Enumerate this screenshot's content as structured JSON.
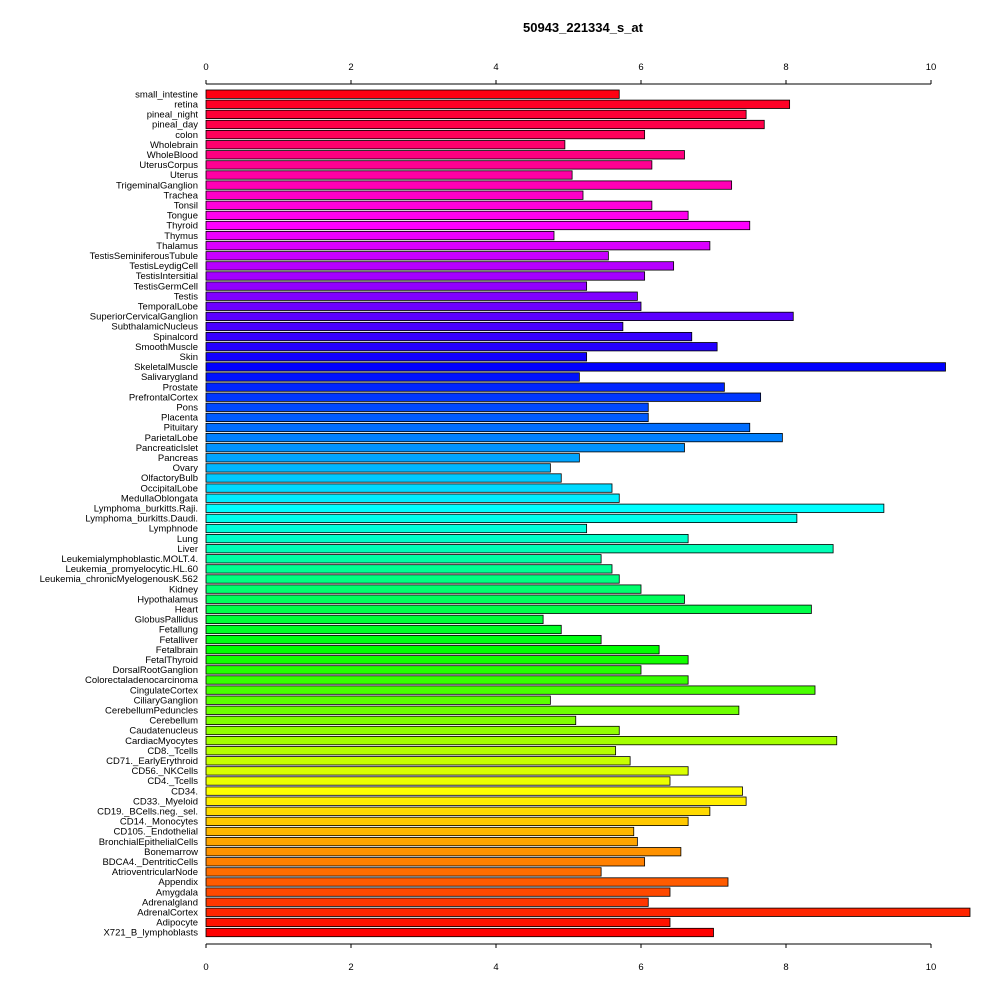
{
  "chart_data": {
    "type": "bar",
    "orientation": "horizontal",
    "title": "50943_221334_s_at",
    "xlabel": "",
    "ylabel": "",
    "xlim": [
      0,
      10.55
    ],
    "xticks": [
      0,
      2,
      4,
      6,
      8,
      10
    ],
    "grid": false,
    "legend": "none",
    "colors": "rainbow gradient from red (bottom) through yellow, green, cyan, blue, magenta back to red (top)",
    "categories": [
      "small_intestine",
      "retina",
      "pineal_night",
      "pineal_day",
      "colon",
      "Wholebrain",
      "WholeBlood",
      "UterusCorpus",
      "Uterus",
      "TrigeminalGanglion",
      "Trachea",
      "Tonsil",
      "Tongue",
      "Thyroid",
      "Thymus",
      "Thalamus",
      "TestisSeminiferousTubule",
      "TestisLeydigCell",
      "TestisIntersitial",
      "TestisGermCell",
      "Testis",
      "TemporalLobe",
      "SuperiorCervicalGanglion",
      "SubthalamicNucleus",
      "Spinalcord",
      "SmoothMuscle",
      "Skin",
      "SkeletalMuscle",
      "Salivarygland",
      "Prostate",
      "PrefrontalCortex",
      "Pons",
      "Placenta",
      "Pituitary",
      "ParietalLobe",
      "PancreaticIslet",
      "Pancreas",
      "Ovary",
      "OlfactoryBulb",
      "OccipitalLobe",
      "MedullaOblongata",
      "Lymphoma_burkitts.Raji.",
      "Lymphoma_burkitts.Daudi.",
      "Lymphnode",
      "Lung",
      "Liver",
      "Leukemialymphoblastic.MOLT.4.",
      "Leukemia_promyelocytic.HL.60",
      "Leukemia_chronicMyelogenousK.562",
      "Kidney",
      "Hypothalamus",
      "Heart",
      "GlobusPallidus",
      "Fetallung",
      "Fetalliver",
      "Fetalbrain",
      "FetalThyroid",
      "DorsalRootGanglion",
      "Colorectaladenocarcinoma",
      "CingulateCortex",
      "CiliaryGanglion",
      "CerebellumPeduncles",
      "Cerebellum",
      "Caudatenucleus",
      "CardiacMyocytes",
      "CD8._Tcells",
      "CD71._EarlyErythroid",
      "CD56._NKCells",
      "CD4._Tcells",
      "CD34.",
      "CD33._Myeloid",
      "CD19._BCells.neg._sel.",
      "CD14._Monocytes",
      "CD105._Endothelial",
      "BronchialEpithelialCells",
      "Bonemarrow",
      "BDCA4._DentriticCells",
      "AtrioventricularNode",
      "Appendix",
      "Amygdala",
      "Adrenalgland",
      "AdrenalCortex",
      "Adipocyte",
      "X721_B_lymphoblasts"
    ],
    "values": [
      5.7,
      8.05,
      7.45,
      7.7,
      6.05,
      4.95,
      6.6,
      6.15,
      5.05,
      7.25,
      5.2,
      6.15,
      6.65,
      7.5,
      4.8,
      6.95,
      5.55,
      6.45,
      6.05,
      5.25,
      5.95,
      6.0,
      8.1,
      5.75,
      6.7,
      7.05,
      5.25,
      10.2,
      5.15,
      7.15,
      7.65,
      6.1,
      6.1,
      7.5,
      7.95,
      6.6,
      5.15,
      4.75,
      4.9,
      5.6,
      5.7,
      9.35,
      8.15,
      5.25,
      6.65,
      8.65,
      5.45,
      5.6,
      5.7,
      6.0,
      6.6,
      8.35,
      4.65,
      4.9,
      5.45,
      6.25,
      6.65,
      6.0,
      6.65,
      8.4,
      4.75,
      7.35,
      5.1,
      5.7,
      8.7,
      5.65,
      5.85,
      6.65,
      6.4,
      7.4,
      7.45,
      6.95,
      6.65,
      5.9,
      5.95,
      6.55,
      6.05,
      5.45,
      7.2,
      6.4,
      6.1,
      10.55,
      6.4,
      7.0
    ]
  }
}
